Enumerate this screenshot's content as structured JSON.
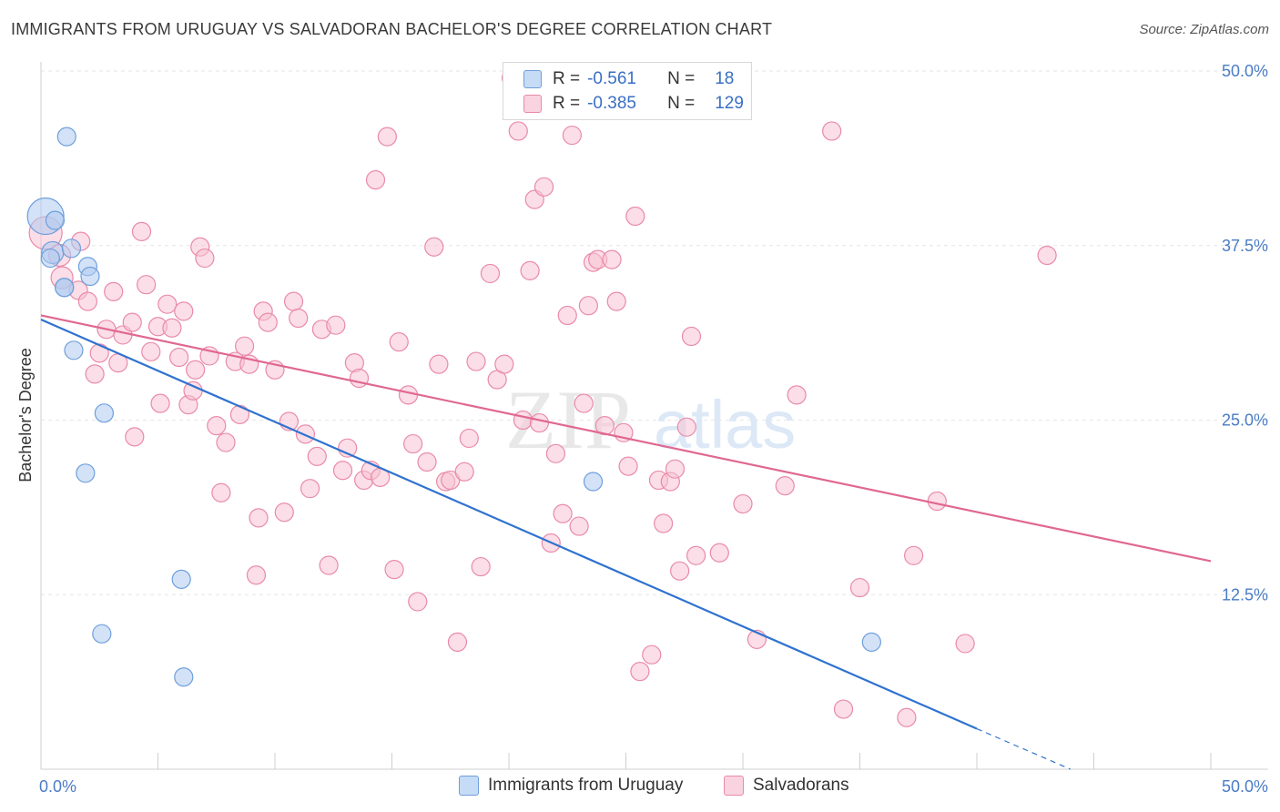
{
  "title": "IMMIGRANTS FROM URUGUAY VS SALVADORAN BACHELOR'S DEGREE CORRELATION CHART",
  "source": "Source: ZipAtlas.com",
  "watermark": {
    "zip": "ZIP",
    "atlas": "atlas"
  },
  "legend": {
    "rows": [
      {
        "r_label": "R =",
        "r_value": "-0.561",
        "n_label": "N =",
        "n_value": "18"
      },
      {
        "r_label": "R =",
        "r_value": "-0.385",
        "n_label": "N =",
        "n_value": "129"
      }
    ]
  },
  "bottom_legend": [
    "Immigrants from Uruguay",
    "Salvadorans"
  ],
  "colors": {
    "blue_fill": "#aecbf0",
    "blue_stroke": "#6e9fdc",
    "blue_line": "#2f72cf",
    "pink_fill": "#f7c3d4",
    "pink_stroke": "#e98aa9",
    "pink_line": "#e06890",
    "axis_tick": "#4a7cc6",
    "grid": "#e6e6e6"
  },
  "chart_data": {
    "type": "scatter",
    "title": "IMMIGRANTS FROM URUGUAY VS SALVADORAN BACHELOR'S DEGREE CORRELATION CHART",
    "xlabel": "",
    "ylabel": "Bachelor's Degree",
    "xlim": [
      0,
      50
    ],
    "ylim": [
      0,
      50
    ],
    "x_tick_labels": [
      "0.0%",
      "50.0%"
    ],
    "y_ticks": [
      12.5,
      25.0,
      37.5,
      50.0
    ],
    "y_tick_labels": [
      "12.5%",
      "25.0%",
      "37.5%",
      "50.0%"
    ],
    "grid": true,
    "legend_position": "top-center",
    "series": [
      {
        "name": "Immigrants from Uruguay",
        "color": "#aecbf0",
        "points": [
          [
            0.2,
            39.6,
            20
          ],
          [
            0.6,
            39.3,
            10
          ],
          [
            0.5,
            37.0,
            12
          ],
          [
            1.3,
            37.3,
            10
          ],
          [
            1.1,
            45.3,
            10
          ],
          [
            2.0,
            36.0,
            10
          ],
          [
            2.1,
            35.3,
            10
          ],
          [
            1.0,
            34.5,
            10
          ],
          [
            1.4,
            30.0,
            10
          ],
          [
            2.7,
            25.5,
            10
          ],
          [
            1.9,
            21.2,
            10
          ],
          [
            23.6,
            20.6,
            10
          ],
          [
            6.0,
            13.6,
            10
          ],
          [
            2.6,
            9.7,
            10
          ],
          [
            6.1,
            6.6,
            10
          ],
          [
            35.5,
            9.1,
            10
          ],
          [
            0.4,
            36.6,
            10
          ],
          [
            1.0,
            34.5,
            10
          ]
        ],
        "trend": {
          "x0": 0,
          "y0": 32.2,
          "x1": 40.0,
          "y1": 2.9,
          "dash_to_x": 44.0,
          "dash_to_y": 0
        }
      },
      {
        "name": "Salvadorans",
        "color": "#f7c3d4",
        "points": [
          [
            0.2,
            38.4,
            18
          ],
          [
            0.8,
            36.8,
            12
          ],
          [
            0.9,
            35.2,
            12
          ],
          [
            1.6,
            34.3,
            10
          ],
          [
            1.7,
            37.8,
            10
          ],
          [
            2.0,
            33.5,
            10
          ],
          [
            2.5,
            29.8,
            10
          ],
          [
            2.3,
            28.3,
            10
          ],
          [
            2.8,
            31.5,
            10
          ],
          [
            3.3,
            29.1,
            10
          ],
          [
            3.1,
            34.2,
            10
          ],
          [
            3.5,
            31.1,
            10
          ],
          [
            3.9,
            32.0,
            10
          ],
          [
            4.0,
            23.8,
            10
          ],
          [
            4.3,
            38.5,
            10
          ],
          [
            4.5,
            34.7,
            10
          ],
          [
            4.7,
            29.9,
            10
          ],
          [
            5.0,
            31.7,
            10
          ],
          [
            5.1,
            26.2,
            10
          ],
          [
            5.4,
            33.3,
            10
          ],
          [
            5.6,
            31.6,
            10
          ],
          [
            5.9,
            29.5,
            10
          ],
          [
            6.1,
            32.8,
            10
          ],
          [
            6.3,
            26.1,
            10
          ],
          [
            6.5,
            27.1,
            10
          ],
          [
            6.6,
            28.6,
            10
          ],
          [
            6.8,
            37.4,
            10
          ],
          [
            7.0,
            36.6,
            10
          ],
          [
            7.2,
            29.6,
            10
          ],
          [
            7.5,
            24.6,
            10
          ],
          [
            7.7,
            19.8,
            10
          ],
          [
            7.9,
            23.4,
            10
          ],
          [
            8.3,
            29.2,
            10
          ],
          [
            8.5,
            25.4,
            10
          ],
          [
            8.7,
            30.3,
            10
          ],
          [
            8.9,
            29.0,
            10
          ],
          [
            9.2,
            13.9,
            10
          ],
          [
            9.5,
            32.8,
            10
          ],
          [
            9.7,
            32.0,
            10
          ],
          [
            9.3,
            18.0,
            10
          ],
          [
            10.0,
            28.6,
            10
          ],
          [
            10.4,
            18.4,
            10
          ],
          [
            10.6,
            24.9,
            10
          ],
          [
            10.8,
            33.5,
            10
          ],
          [
            11.0,
            32.3,
            10
          ],
          [
            11.3,
            24.0,
            10
          ],
          [
            11.5,
            20.1,
            10
          ],
          [
            11.8,
            22.4,
            10
          ],
          [
            12.0,
            31.5,
            10
          ],
          [
            12.3,
            14.6,
            10
          ],
          [
            12.6,
            31.8,
            10
          ],
          [
            12.9,
            21.4,
            10
          ],
          [
            13.1,
            23.0,
            10
          ],
          [
            13.4,
            29.1,
            10
          ],
          [
            13.6,
            28.0,
            10
          ],
          [
            13.8,
            20.7,
            10
          ],
          [
            14.1,
            21.4,
            10
          ],
          [
            14.3,
            42.2,
            10
          ],
          [
            14.5,
            20.9,
            10
          ],
          [
            14.8,
            45.3,
            10
          ],
          [
            15.1,
            14.3,
            10
          ],
          [
            15.3,
            30.6,
            10
          ],
          [
            15.7,
            26.8,
            10
          ],
          [
            15.9,
            23.3,
            10
          ],
          [
            16.1,
            12.0,
            10
          ],
          [
            16.5,
            22.0,
            10
          ],
          [
            16.8,
            37.4,
            10
          ],
          [
            17.0,
            29.0,
            10
          ],
          [
            17.3,
            20.6,
            10
          ],
          [
            17.5,
            20.7,
            10
          ],
          [
            17.8,
            9.1,
            10
          ],
          [
            18.1,
            21.3,
            10
          ],
          [
            18.3,
            23.7,
            10
          ],
          [
            18.6,
            29.2,
            10
          ],
          [
            18.8,
            14.5,
            10
          ],
          [
            19.2,
            35.5,
            10
          ],
          [
            19.5,
            27.9,
            10
          ],
          [
            19.8,
            29.0,
            10
          ],
          [
            20.1,
            49.5,
            10
          ],
          [
            20.4,
            45.7,
            10
          ],
          [
            20.6,
            25.0,
            10
          ],
          [
            20.9,
            35.7,
            10
          ],
          [
            21.1,
            40.8,
            10
          ],
          [
            21.3,
            24.8,
            10
          ],
          [
            21.5,
            41.7,
            10
          ],
          [
            21.8,
            16.2,
            10
          ],
          [
            22.0,
            22.6,
            10
          ],
          [
            22.3,
            18.3,
            10
          ],
          [
            22.5,
            32.5,
            10
          ],
          [
            22.7,
            45.4,
            10
          ],
          [
            23.0,
            17.4,
            10
          ],
          [
            23.2,
            26.2,
            10
          ],
          [
            23.4,
            33.2,
            10
          ],
          [
            23.6,
            36.3,
            10
          ],
          [
            23.8,
            36.5,
            10
          ],
          [
            24.1,
            24.6,
            10
          ],
          [
            24.4,
            36.5,
            10
          ],
          [
            24.6,
            33.5,
            10
          ],
          [
            24.9,
            24.1,
            10
          ],
          [
            25.1,
            21.7,
            10
          ],
          [
            25.4,
            39.6,
            10
          ],
          [
            25.6,
            7.0,
            10
          ],
          [
            26.1,
            8.2,
            10
          ],
          [
            26.4,
            20.7,
            10
          ],
          [
            26.6,
            17.6,
            10
          ],
          [
            26.9,
            20.6,
            10
          ],
          [
            27.1,
            21.5,
            10
          ],
          [
            27.3,
            14.2,
            10
          ],
          [
            27.6,
            24.5,
            10
          ],
          [
            27.8,
            31.0,
            10
          ],
          [
            28.0,
            15.3,
            10
          ],
          [
            29.0,
            15.5,
            10
          ],
          [
            30.0,
            19.0,
            10
          ],
          [
            30.6,
            9.3,
            10
          ],
          [
            31.8,
            20.3,
            10
          ],
          [
            32.3,
            26.8,
            10
          ],
          [
            33.8,
            45.7,
            10
          ],
          [
            34.3,
            4.3,
            10
          ],
          [
            35.0,
            13.0,
            10
          ],
          [
            37.0,
            3.7,
            10
          ],
          [
            37.3,
            15.3,
            10
          ],
          [
            38.3,
            19.2,
            10
          ],
          [
            39.5,
            9.0,
            10
          ],
          [
            43.0,
            36.8,
            10
          ]
        ],
        "trend": {
          "x0": 0,
          "y0": 32.5,
          "x1": 50.0,
          "y1": 14.9
        }
      }
    ]
  }
}
